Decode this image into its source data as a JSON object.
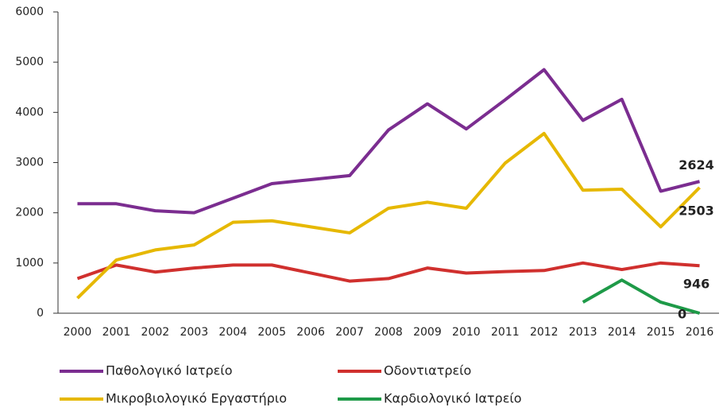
{
  "chart_data": {
    "type": "line",
    "categories": [
      "2000",
      "2001",
      "2002",
      "2003",
      "2004",
      "2005",
      "2006",
      "2007",
      "2008",
      "2009",
      "2010",
      "2011",
      "2012",
      "2013",
      "2014",
      "2015",
      "2016"
    ],
    "series": [
      {
        "name": "Παθολογικό Ιατρείο",
        "color": "#7b2d90",
        "values": [
          2180,
          2180,
          2040,
          2000,
          2290,
          2580,
          2660,
          2740,
          3650,
          4170,
          3670,
          4250,
          4850,
          3840,
          4260,
          2430,
          2624
        ]
      },
      {
        "name": "Οδοντιατρείο",
        "color": "#d0302e",
        "values": [
          690,
          960,
          820,
          900,
          960,
          960,
          800,
          640,
          690,
          900,
          800,
          830,
          850,
          1000,
          870,
          1000,
          946
        ]
      },
      {
        "name": "Μικροβιολογικό Εργαστήριο",
        "color": "#e6b800",
        "values": [
          300,
          1060,
          1260,
          1360,
          1810,
          1840,
          1720,
          1600,
          2090,
          2210,
          2090,
          2990,
          3580,
          2450,
          2470,
          1720,
          2503
        ]
      },
      {
        "name": "Καρδιολογικό Ιατρείο",
        "color": "#1e9a48",
        "values": [
          null,
          null,
          null,
          null,
          null,
          null,
          null,
          null,
          null,
          null,
          null,
          null,
          null,
          220,
          660,
          220,
          0
        ]
      }
    ],
    "ylim": [
      0,
      6000
    ],
    "yticks": [
      0,
      1000,
      2000,
      3000,
      4000,
      5000,
      6000
    ]
  }
}
